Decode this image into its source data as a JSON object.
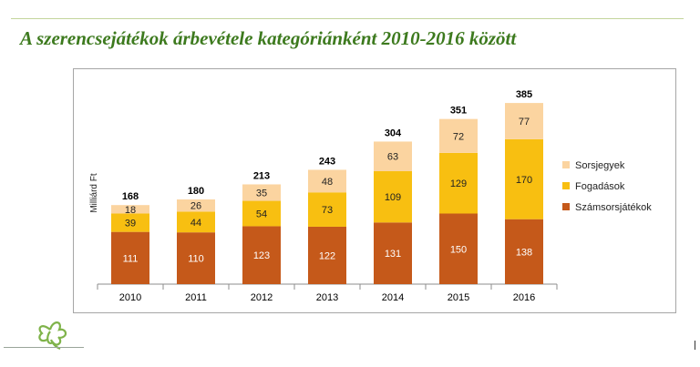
{
  "page": {
    "title": "A szerencsejátékok árbevétele kategóriánként 2010-2016 között"
  },
  "chart_data": {
    "type": "bar",
    "stacked": true,
    "title": "",
    "xlabel": "",
    "ylabel": "Milliárd Ft",
    "categories": [
      "2010",
      "2011",
      "2012",
      "2013",
      "2014",
      "2015",
      "2016"
    ],
    "series": [
      {
        "name": "Számsorsjátékok",
        "color": "#c5591a",
        "values": [
          111,
          110,
          123,
          122,
          131,
          150,
          138
        ]
      },
      {
        "name": "Fogadások",
        "color": "#f8bf11",
        "values": [
          39,
          44,
          54,
          73,
          109,
          129,
          170
        ]
      },
      {
        "name": "Sorsjegyek",
        "color": "#fbd4a0",
        "values": [
          18,
          26,
          35,
          48,
          63,
          72,
          77
        ]
      }
    ],
    "totals": [
      168,
      180,
      213,
      243,
      304,
      351,
      385
    ],
    "legend_order": [
      "Sorsjegyek",
      "Fogadások",
      "Számsorsjátékok"
    ],
    "legend_position": "right",
    "grid": false,
    "ylim": [
      0,
      420
    ],
    "colors": {
      "title": "#3d7a1e",
      "accent_rule": "#c3d59b",
      "logo": "#7fb34a"
    }
  },
  "logo": {
    "icon": "clover-icon"
  }
}
